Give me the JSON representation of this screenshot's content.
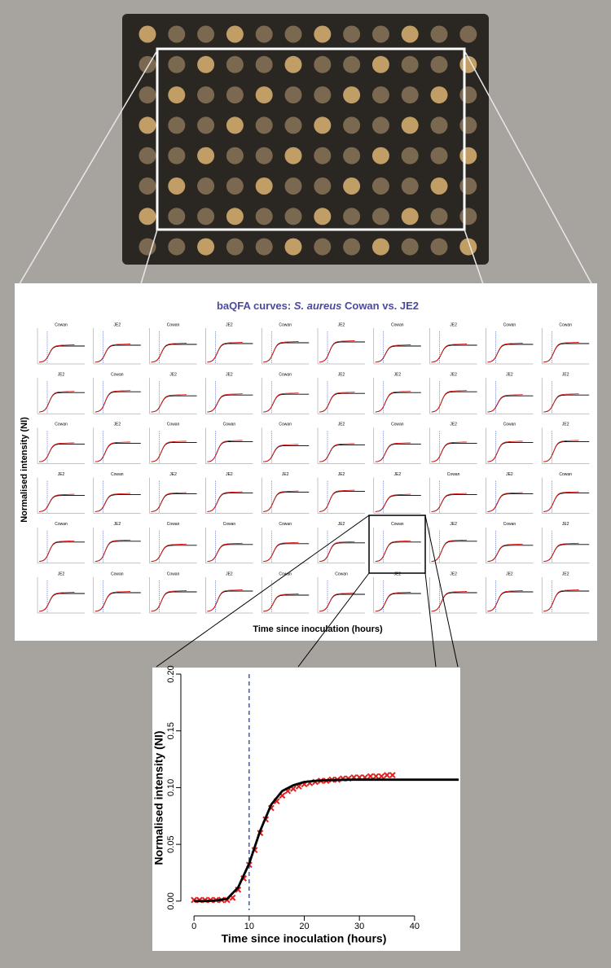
{
  "chart_data": [
    {
      "type": "panel-grid",
      "title_parts": [
        "baQFA curves: ",
        "S. aureus",
        " Cowan vs. JE2"
      ],
      "x_label": "Time since inoculation (hours)",
      "y_label": "Normalised intensity (NI)",
      "columns": 10,
      "panel_labels": [
        "Cowan",
        "JE2",
        "Cowan",
        "JE2",
        "Cowan",
        "JE2",
        "Cowan",
        "JE2",
        "Cowan",
        "Cowan",
        "JE2",
        "Cowan",
        "JE2",
        "JE2",
        "Cowan",
        "JE2",
        "JE2",
        "JE2",
        "JE2",
        "JE2",
        "Cowan",
        "JE2",
        "Cowan",
        "Cowan",
        "Cowan",
        "JE2",
        "Cowan",
        "JE2",
        "Cowan",
        "JE2",
        "JE2",
        "Cowan",
        "JE2",
        "JE2",
        "JE2",
        "JE2",
        "JE2",
        "Cowan",
        "JE2",
        "Cowan",
        "Cowan",
        "JE2",
        "Cowan",
        "Cowan",
        "Cowan",
        "JE2",
        "Cowan",
        "JE2",
        "Cowan",
        "JE2",
        "JE2",
        "Cowan",
        "Cowan",
        "JE2",
        "Cowan",
        "Cowan",
        "JE2",
        "JE2",
        "JE2",
        "JE2"
      ]
    },
    {
      "type": "scatter-fit",
      "x_label": "Time since inoculation (hours)",
      "y_label": "Normalised intensity (NI)",
      "xlim": [
        -1.5,
        48
      ],
      "ylim": [
        -0.008,
        0.2
      ],
      "xticks": [
        0,
        10,
        20,
        30,
        40
      ],
      "yticks": [
        {
          "value": 0,
          "label": "0.00"
        },
        {
          "value": 0.05,
          "label": "0.05"
        },
        {
          "value": 0.1,
          "label": "0.10"
        },
        {
          "value": 0.15,
          "label": "0.15"
        },
        {
          "value": 0.2,
          "label": "0.20"
        }
      ],
      "vline": 10,
      "vline_color": "#2040c0",
      "series": [
        {
          "type": "scatter",
          "color": "#e02020",
          "x": [
            0,
            1,
            2,
            3,
            4,
            5,
            6,
            7,
            8,
            9,
            10,
            11,
            12,
            13,
            14,
            15,
            16,
            17,
            18,
            19,
            20,
            21,
            22,
            23,
            24,
            25,
            26,
            27,
            28,
            29,
            30,
            31,
            32,
            33,
            34,
            35,
            36
          ],
          "values": [
            0.001,
            0.001,
            0.001,
            0.001,
            0.001,
            0.001,
            0.001,
            0.003,
            0.01,
            0.02,
            0.032,
            0.045,
            0.06,
            0.072,
            0.082,
            0.088,
            0.093,
            0.097,
            0.099,
            0.101,
            0.103,
            0.104,
            0.105,
            0.106,
            0.106,
            0.107,
            0.107,
            0.108,
            0.108,
            0.109,
            0.109,
            0.109,
            0.11,
            0.11,
            0.11,
            0.111,
            0.111
          ]
        },
        {
          "type": "line",
          "color": "#000000",
          "x": [
            0,
            2,
            4,
            6,
            8,
            10,
            12,
            14,
            16,
            18,
            20,
            22,
            24,
            28,
            32,
            36,
            40,
            44,
            48
          ],
          "values": [
            0,
            0,
            0.0005,
            0.002,
            0.012,
            0.033,
            0.062,
            0.085,
            0.097,
            0.102,
            0.105,
            0.106,
            0.1065,
            0.107,
            0.107,
            0.107,
            0.107,
            0.107,
            0.107
          ]
        }
      ]
    }
  ]
}
